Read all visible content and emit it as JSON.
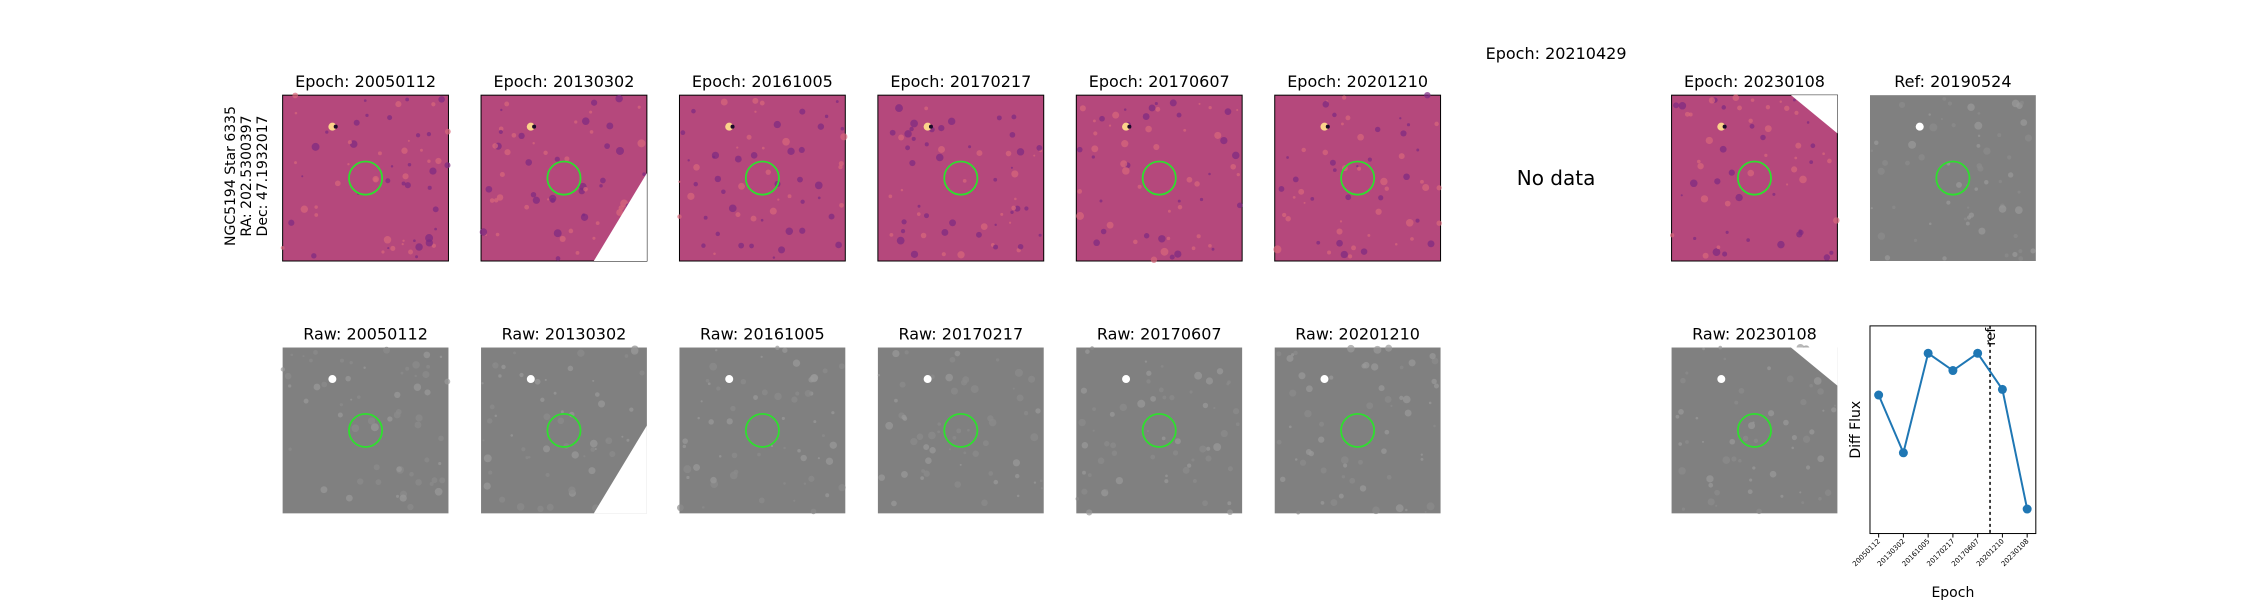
{
  "row_label": [
    "NGC5194 Star 6335",
    "RA: 202.5300397",
    "Dec: 47.1932017"
  ],
  "epochs": [
    {
      "diff": "Epoch: 20050112",
      "raw": "Raw: 20050112"
    },
    {
      "diff": "Epoch: 20130302",
      "raw": "Raw: 20130302"
    },
    {
      "diff": "Epoch: 20161005",
      "raw": "Raw: 20161005"
    },
    {
      "diff": "Epoch: 20170217",
      "raw": "Raw: 20170217"
    },
    {
      "diff": "Epoch: 20170607",
      "raw": "Raw: 20170607"
    },
    {
      "diff": "Epoch: 20201210",
      "raw": "Raw: 20201210"
    },
    {
      "diff": "Epoch: 20210429",
      "missing": "No data"
    },
    {
      "diff": "Epoch: 20230108",
      "raw": "Raw: 20230108"
    }
  ],
  "ref_title": "Ref: 20190524",
  "chart_data": {
    "type": "line",
    "categories": [
      "20050112",
      "20130302",
      "20161005",
      "20170217",
      "20170607",
      "20201210",
      "20230108"
    ],
    "values": [
      66.7,
      38.9,
      86.8,
      78.5,
      86.8,
      69.4,
      11.8
    ],
    "color": "#1f77b4",
    "ylim": [
      0,
      100
    ],
    "ylabel": "Diff Flux",
    "xlabel": "Epoch",
    "annotation": "ref"
  }
}
